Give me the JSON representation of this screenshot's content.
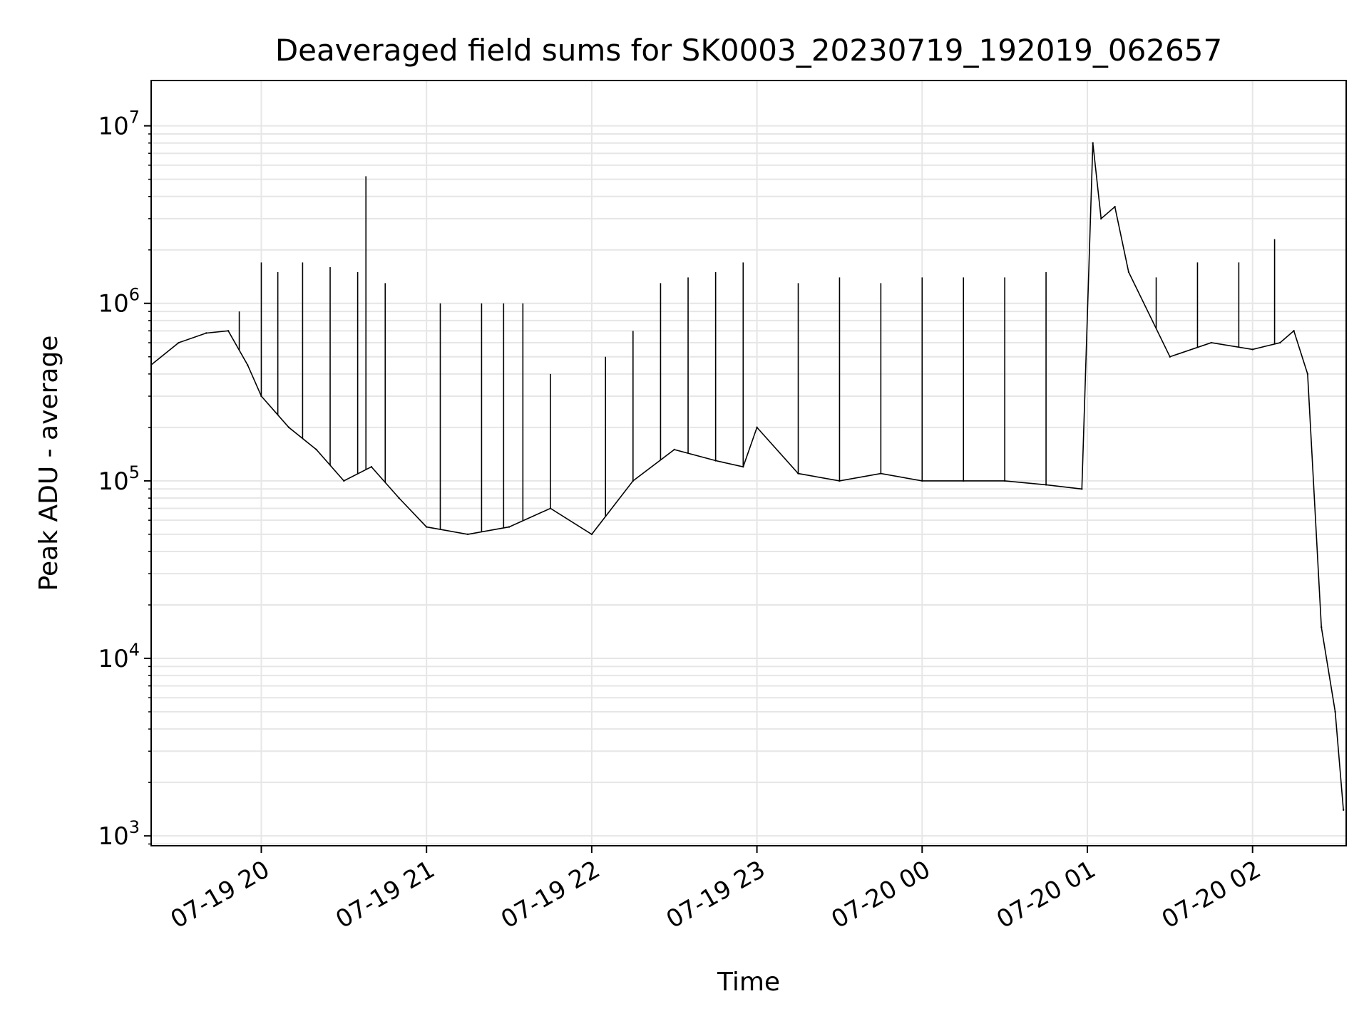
{
  "chart_data": {
    "type": "line",
    "title": "Deaveraged field sums for SK0003_20230719_192019_062657",
    "xlabel": "Time",
    "ylabel": "Peak ADU - average",
    "yscale": "log",
    "ylim": [
      880,
      18000000
    ],
    "xlim": [
      "2023-07-19 19:20",
      "2023-07-20 02:34"
    ],
    "x_ticks": [
      {
        "t": "2023-07-19 20:00",
        "label": "07-19 20"
      },
      {
        "t": "2023-07-19 21:00",
        "label": "07-19 21"
      },
      {
        "t": "2023-07-19 22:00",
        "label": "07-19 22"
      },
      {
        "t": "2023-07-19 23:00",
        "label": "07-19 23"
      },
      {
        "t": "2023-07-20 00:00",
        "label": "07-20 00"
      },
      {
        "t": "2023-07-20 01:00",
        "label": "07-20 01"
      },
      {
        "t": "2023-07-20 02:00",
        "label": "07-20 02"
      }
    ],
    "y_ticks": [
      {
        "exp": 3,
        "base": "10",
        "sup": "3"
      },
      {
        "exp": 4,
        "base": "10",
        "sup": "4"
      },
      {
        "exp": 5,
        "base": "10",
        "sup": "5"
      },
      {
        "exp": 6,
        "base": "10",
        "sup": "6"
      },
      {
        "exp": 7,
        "base": "10",
        "sup": "7"
      }
    ],
    "grid": true,
    "line_color": "#000000",
    "series": [
      {
        "x": [
          "2023-07-19 19:20",
          "2023-07-19 19:30",
          "2023-07-19 19:40",
          "2023-07-19 19:48",
          "2023-07-19 19:55",
          "2023-07-19 20:00",
          "2023-07-19 20:10",
          "2023-07-19 20:20",
          "2023-07-19 20:30",
          "2023-07-19 20:40",
          "2023-07-19 20:50",
          "2023-07-19 21:00",
          "2023-07-19 21:15",
          "2023-07-19 21:30",
          "2023-07-19 21:45",
          "2023-07-19 22:00",
          "2023-07-19 22:15",
          "2023-07-19 22:30",
          "2023-07-19 22:45",
          "2023-07-19 22:55",
          "2023-07-19 23:00",
          "2023-07-19 23:15",
          "2023-07-19 23:30",
          "2023-07-19 23:45",
          "2023-07-20 00:00",
          "2023-07-20 00:15",
          "2023-07-20 00:30",
          "2023-07-20 00:45",
          "2023-07-20 00:58",
          "2023-07-20 01:02",
          "2023-07-20 01:05",
          "2023-07-20 01:10",
          "2023-07-20 01:15",
          "2023-07-20 01:30",
          "2023-07-20 01:45",
          "2023-07-20 02:00",
          "2023-07-20 02:10",
          "2023-07-20 02:15",
          "2023-07-20 02:20",
          "2023-07-20 02:25",
          "2023-07-20 02:30",
          "2023-07-20 02:33"
        ],
        "y": [
          450000,
          600000,
          680000,
          700000,
          450000,
          300000,
          200000,
          150000,
          100000,
          120000,
          80000,
          55000,
          50000,
          55000,
          70000,
          50000,
          100000,
          150000,
          130000,
          120000,
          200000,
          110000,
          100000,
          110000,
          100000,
          100000,
          100000,
          95000,
          90000,
          8000000,
          3000000,
          3500000,
          1500000,
          500000,
          600000,
          550000,
          600000,
          700000,
          400000,
          15000,
          5000,
          1400
        ],
        "spikes": {
          "x": [
            "2023-07-19 19:52",
            "2023-07-19 20:00",
            "2023-07-19 20:06",
            "2023-07-19 20:15",
            "2023-07-19 20:25",
            "2023-07-19 20:35",
            "2023-07-19 20:38",
            "2023-07-19 20:45",
            "2023-07-19 21:05",
            "2023-07-19 21:20",
            "2023-07-19 21:28",
            "2023-07-19 21:35",
            "2023-07-19 21:45",
            "2023-07-19 22:05",
            "2023-07-19 22:15",
            "2023-07-19 22:25",
            "2023-07-19 22:35",
            "2023-07-19 22:45",
            "2023-07-19 22:55",
            "2023-07-19 23:15",
            "2023-07-19 23:30",
            "2023-07-19 23:45",
            "2023-07-20 00:00",
            "2023-07-20 00:15",
            "2023-07-20 00:30",
            "2023-07-20 00:45",
            "2023-07-20 01:25",
            "2023-07-20 01:40",
            "2023-07-20 01:55",
            "2023-07-20 02:08"
          ],
          "y": [
            900000,
            1700000,
            1500000,
            1700000,
            1600000,
            1500000,
            5200000,
            1300000,
            1000000,
            1000000,
            1000000,
            1000000,
            400000,
            500000,
            700000,
            1300000,
            1400000,
            1500000,
            1700000,
            1300000,
            1400000,
            1300000,
            1400000,
            1400000,
            1400000,
            1500000,
            1400000,
            1700000,
            1700000,
            2300000
          ]
        }
      }
    ]
  }
}
